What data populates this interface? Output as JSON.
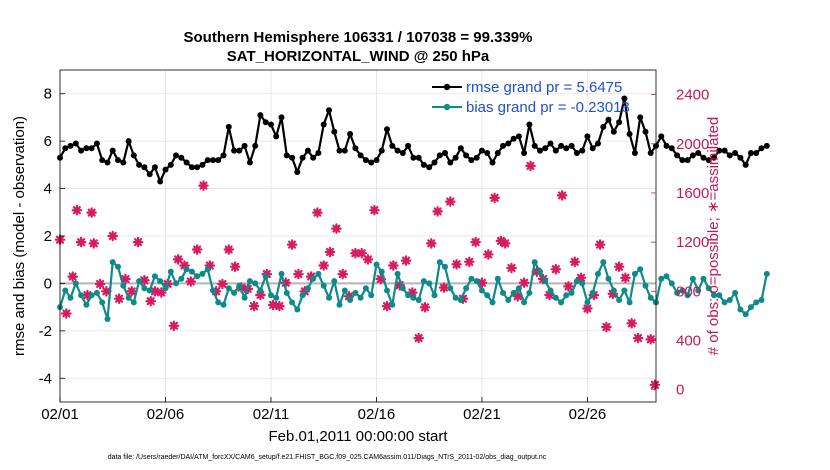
{
  "chart_data": {
    "type": "line",
    "title_line1": "Southern Hemisphere 106331 / 107038 = 99.339%",
    "title_line2": "SAT_HORIZONTAL_WIND @ 250 hPa",
    "xlabel": "Feb.01,2011 00:00:00 start",
    "ylabel_left": "rmse and bias (model - observation)",
    "ylabel_right": "# of obs: o=possible; ∗=assimilated",
    "footer": "data file: /Users/raeder/DAI/ATM_forcXX/CAM6_setup/f.e21.FHIST_BGC.f09_025.CAM6assim.011/Diags_NTrS_2011-02/obs_diag_output.nc",
    "x_ticks": [
      "02/01",
      "02/06",
      "02/11",
      "02/16",
      "02/21",
      "02/26"
    ],
    "x_tick_values": [
      1,
      6,
      11,
      16,
      21,
      26
    ],
    "xlim": [
      1,
      29.25
    ],
    "ylim_left": [
      -5,
      9
    ],
    "y_ticks_left": [
      -4,
      -2,
      0,
      2,
      4,
      6,
      8
    ],
    "ylim_right": [
      -100,
      2600
    ],
    "y_ticks_right": [
      0,
      400,
      800,
      1200,
      1600,
      2000,
      2400
    ],
    "grid": true,
    "legend_position": "top-right",
    "series": [
      {
        "name": "rmse grand pr = 5.6475",
        "axis": "left",
        "color": "#000000",
        "marker": "dot",
        "x_start": 1,
        "x_step": 0.25,
        "values": [
          5.3,
          5.7,
          5.8,
          5.9,
          5.6,
          5.7,
          5.7,
          5.9,
          5.2,
          5.1,
          5.6,
          5.2,
          5.1,
          6.0,
          5.4,
          5.0,
          4.9,
          4.6,
          4.9,
          4.3,
          4.8,
          5.0,
          5.4,
          5.3,
          5.1,
          4.9,
          4.9,
          5.0,
          5.2,
          5.2,
          5.2,
          5.4,
          6.6,
          5.6,
          5.6,
          5.8,
          5.1,
          5.8,
          7.1,
          6.8,
          6.7,
          6.2,
          7.0,
          5.4,
          5.3,
          4.7,
          5.3,
          5.6,
          5.3,
          5.5,
          6.7,
          7.3,
          6.4,
          5.6,
          5.6,
          6.3,
          5.7,
          5.4,
          5.2,
          5.1,
          5.2,
          5.6,
          6.5,
          5.8,
          5.6,
          5.5,
          5.8,
          5.3,
          5.3,
          5.0,
          4.9,
          5.1,
          5.4,
          5.5,
          5.1,
          5.3,
          5.7,
          5.4,
          5.2,
          5.3,
          5.6,
          5.5,
          5.1,
          5.5,
          5.8,
          5.9,
          6.1,
          6.2,
          5.5,
          6.7,
          5.8,
          5.6,
          5.7,
          5.9,
          5.6,
          5.8,
          5.7,
          5.8,
          5.5,
          5.6,
          6.2,
          5.7,
          5.9,
          6.6,
          6.9,
          6.4,
          6.8,
          7.8,
          6.3,
          5.5,
          7.0,
          6.4,
          5.5,
          5.8,
          6.2,
          5.8,
          5.7,
          5.4,
          5.2,
          5.2,
          5.4,
          5.5,
          5.3,
          5.2,
          5.3,
          5.6,
          5.6,
          5.4,
          5.5,
          5.3,
          5.0,
          5.5,
          5.5,
          5.7,
          5.8
        ],
        "annotations": []
      },
      {
        "name": "bias grand pr = -0.23013",
        "axis": "left",
        "color": "#0e8a8a",
        "marker": "dot",
        "x_start": 1,
        "x_step": 0.25,
        "values": [
          -1.0,
          -0.3,
          -0.6,
          0.0,
          -0.5,
          -0.9,
          -0.5,
          -0.4,
          -0.8,
          -1.5,
          0.9,
          0.7,
          -0.1,
          -0.6,
          -0.8,
          0.1,
          -0.2,
          -0.3,
          0.3,
          0.1,
          -0.2,
          0.5,
          0.0,
          0.2,
          0.6,
          0.5,
          0.3,
          0.4,
          0.6,
          -0.3,
          -0.8,
          -0.9,
          -0.2,
          -0.4,
          -0.1,
          -0.6,
          0.1,
          0.0,
          -0.3,
          0.3,
          -0.5,
          -0.6,
          0.4,
          -0.4,
          -0.8,
          -1.1,
          -0.5,
          -0.2,
          0.2,
          0.4,
          -0.1,
          -0.6,
          0.1,
          -0.9,
          -0.3,
          -0.7,
          -0.4,
          -0.6,
          -0.2,
          -0.5,
          0.8,
          0.5,
          -0.3,
          -0.9,
          0.4,
          -0.2,
          -0.5,
          -0.6,
          -0.7,
          0.1,
          0.0,
          -0.5,
          0.9,
          0.7,
          -0.2,
          -0.6,
          -0.7,
          -0.2,
          0.2,
          0.1,
          -0.3,
          -0.5,
          -0.8,
          0.2,
          -0.4,
          -0.7,
          -0.4,
          -0.2,
          -0.8,
          -0.4,
          0.9,
          0.5,
          0.1,
          -0.3,
          -0.6,
          -0.8,
          -0.5,
          -0.4,
          0.1,
          0.0,
          -0.8,
          -0.4,
          0.4,
          0.9,
          0.2,
          -0.3,
          -0.7,
          -0.3,
          -0.8,
          0.4,
          0.6,
          -0.1,
          -0.6,
          -0.8,
          0.2,
          0.3,
          0.0,
          -0.4,
          -0.3,
          -0.5,
          0.2,
          -0.3,
          0.2,
          -0.2,
          -0.5,
          -0.5,
          -0.8,
          -0.7,
          -0.4,
          -1.1,
          -1.3,
          -1.0,
          -0.8,
          -0.7,
          0.4
        ]
      },
      {
        "name": "obs assimilated",
        "axis": "right",
        "color": "#d81b60",
        "marker": "star",
        "points": [
          [
            1.0,
            1220
          ],
          [
            1.3,
            620
          ],
          [
            1.6,
            920
          ],
          [
            1.8,
            1460
          ],
          [
            2.0,
            1200
          ],
          [
            2.3,
            770
          ],
          [
            2.5,
            1440
          ],
          [
            2.6,
            1190
          ],
          [
            2.9,
            860
          ],
          [
            3.2,
            800
          ],
          [
            3.5,
            1250
          ],
          [
            3.8,
            740
          ],
          [
            4.1,
            900
          ],
          [
            4.4,
            800
          ],
          [
            4.7,
            1200
          ],
          [
            5.0,
            890
          ],
          [
            5.3,
            720
          ],
          [
            5.5,
            800
          ],
          [
            5.8,
            790
          ],
          [
            6.1,
            860
          ],
          [
            6.4,
            520
          ],
          [
            6.6,
            1060
          ],
          [
            6.9,
            1010
          ],
          [
            7.2,
            880
          ],
          [
            7.5,
            1140
          ],
          [
            7.8,
            1660
          ],
          [
            8.1,
            1010
          ],
          [
            8.4,
            800
          ],
          [
            8.7,
            860
          ],
          [
            9.0,
            1140
          ],
          [
            9.3,
            1000
          ],
          [
            9.6,
            830
          ],
          [
            9.9,
            820
          ],
          [
            10.2,
            680
          ],
          [
            10.5,
            770
          ],
          [
            10.8,
            940
          ],
          [
            11.1,
            690
          ],
          [
            11.4,
            680
          ],
          [
            11.7,
            870
          ],
          [
            12.0,
            1180
          ],
          [
            12.3,
            940
          ],
          [
            12.6,
            800
          ],
          [
            12.9,
            920
          ],
          [
            13.2,
            1440
          ],
          [
            13.5,
            1010
          ],
          [
            13.8,
            1120
          ],
          [
            14.1,
            1310
          ],
          [
            14.4,
            940
          ],
          [
            14.7,
            760
          ],
          [
            15.0,
            1110
          ],
          [
            15.3,
            1110
          ],
          [
            15.6,
            1060
          ],
          [
            15.9,
            1460
          ],
          [
            16.2,
            900
          ],
          [
            16.5,
            680
          ],
          [
            16.8,
            1010
          ],
          [
            17.1,
            850
          ],
          [
            17.4,
            1050
          ],
          [
            17.7,
            790
          ],
          [
            18.0,
            420
          ],
          [
            18.3,
            670
          ],
          [
            18.6,
            1190
          ],
          [
            18.9,
            1450
          ],
          [
            19.2,
            830
          ],
          [
            19.5,
            1530
          ],
          [
            19.8,
            1020
          ],
          [
            20.1,
            740
          ],
          [
            20.4,
            1040
          ],
          [
            20.7,
            1200
          ],
          [
            21.0,
            870
          ],
          [
            21.3,
            1100
          ],
          [
            21.6,
            1560
          ],
          [
            21.9,
            1210
          ],
          [
            22.1,
            1190
          ],
          [
            22.4,
            990
          ],
          [
            22.7,
            760
          ],
          [
            23.0,
            870
          ],
          [
            23.3,
            1820
          ],
          [
            23.6,
            960
          ],
          [
            23.9,
            900
          ],
          [
            24.2,
            770
          ],
          [
            24.5,
            980
          ],
          [
            24.8,
            1580
          ],
          [
            25.1,
            840
          ],
          [
            25.4,
            1040
          ],
          [
            25.7,
            910
          ],
          [
            26.0,
            660
          ],
          [
            26.3,
            770
          ],
          [
            26.6,
            1180
          ],
          [
            26.9,
            510
          ],
          [
            27.2,
            780
          ],
          [
            27.5,
            1000
          ],
          [
            27.8,
            910
          ],
          [
            28.1,
            540
          ],
          [
            28.4,
            420
          ],
          [
            29.0,
            410
          ],
          [
            29.2,
            40
          ]
        ]
      }
    ]
  }
}
